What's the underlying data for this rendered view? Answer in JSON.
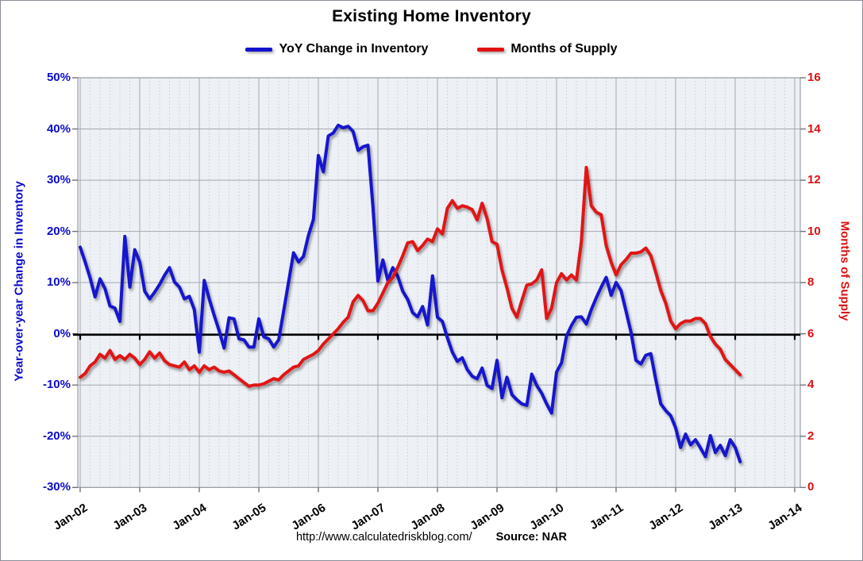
{
  "chart_data": {
    "type": "line",
    "title": "Existing Home Inventory",
    "footer": {
      "url": "http://www.calculatedriskblog.com/",
      "source": "Source: NAR"
    },
    "colors": {
      "yoy_line": "#1412cd",
      "supply_line": "#e01212",
      "zero_axis": "#000000",
      "grid_major": "#a5a9b0",
      "grid_minor": "#c7ccd6",
      "plot_bg": "#edf1f6",
      "left_axis_text": "#0b0bcc",
      "right_axis_text": "#dd0f0f"
    },
    "legend": [
      {
        "name": "YoY Change in Inventory",
        "color": "#1412cd"
      },
      {
        "name": "Months of Supply",
        "color": "#e01212"
      }
    ],
    "x_tick_labels": [
      "Jan-02",
      "Jan-03",
      "Jan-04",
      "Jan-05",
      "Jan-06",
      "Jan-07",
      "Jan-08",
      "Jan-09",
      "Jan-10",
      "Jan-11",
      "Jan-12",
      "Jan-13",
      "Jan-14"
    ],
    "left_axis": {
      "title": "Year-over-year Change in Inventory",
      "min": -30,
      "max": 50,
      "ticks": [
        "50%",
        "40%",
        "30%",
        "20%",
        "10%",
        "0%",
        "-10%",
        "-20%",
        "-30%"
      ]
    },
    "right_axis": {
      "title": "Months of Supply",
      "min": 0,
      "max": 16,
      "ticks": [
        "16",
        "14",
        "12",
        "10",
        "8",
        "6",
        "4",
        "2",
        "0"
      ]
    },
    "start_month": "Jan-02",
    "end_month": "Feb-13",
    "series": [
      {
        "name": "YoY Change in Inventory",
        "axis": "left",
        "unit": "%",
        "values": [
          17.1,
          14.2,
          11.1,
          7.4,
          10.9,
          9.0,
          5.6,
          5.2,
          2.6,
          19.2,
          9.3,
          16.6,
          14.2,
          8.5,
          7.0,
          8.3,
          9.8,
          11.6,
          13.1,
          10.3,
          9.3,
          7.0,
          7.5,
          4.9,
          -3.4,
          10.6,
          7.0,
          3.8,
          0.8,
          -2.6,
          3.3,
          3.1,
          -0.8,
          -1.0,
          -2.4,
          -2.4,
          3.1,
          -0.4,
          -0.8,
          -2.4,
          -1.0,
          4.6,
          10.3,
          16.0,
          14.2,
          15.3,
          19.4,
          22.5,
          35.0,
          31.8,
          38.8,
          39.4,
          40.9,
          40.4,
          40.7,
          39.7,
          36.0,
          36.7,
          37.0,
          25.0,
          10.5,
          14.6,
          10.6,
          13.1,
          11.4,
          8.5,
          6.9,
          4.3,
          3.5,
          5.5,
          1.9,
          11.5,
          3.4,
          2.6,
          -0.6,
          -3.4,
          -5.2,
          -4.5,
          -6.8,
          -8.1,
          -8.6,
          -6.5,
          -9.9,
          -10.5,
          -5.0,
          -12.3,
          -8.3,
          -11.7,
          -12.7,
          -13.5,
          -13.8,
          -7.7,
          -9.9,
          -11.4,
          -13.5,
          -15.3,
          -7.3,
          -5.5,
          -0.3,
          1.8,
          3.4,
          3.5,
          2.1,
          4.9,
          7.2,
          9.3,
          11.2,
          7.7,
          10.2,
          8.6,
          4.6,
          0.5,
          -5.0,
          -5.7,
          -4.0,
          -3.7,
          -8.8,
          -13.5,
          -14.8,
          -15.8,
          -18.2,
          -22.0,
          -19.4,
          -21.5,
          -20.5,
          -22.1,
          -23.8,
          -19.7,
          -23.0,
          -21.6,
          -23.6,
          -20.5,
          -22.0,
          -24.8
        ]
      },
      {
        "name": "Months of Supply",
        "axis": "right",
        "unit": "months",
        "values": [
          4.3,
          4.45,
          4.75,
          4.9,
          5.2,
          5.05,
          5.35,
          5.0,
          5.15,
          5.0,
          5.2,
          5.05,
          4.8,
          5.0,
          5.3,
          5.05,
          5.25,
          4.95,
          4.8,
          4.75,
          4.7,
          4.9,
          4.6,
          4.75,
          4.5,
          4.75,
          4.6,
          4.7,
          4.55,
          4.5,
          4.55,
          4.4,
          4.25,
          4.1,
          3.95,
          4.0,
          4.0,
          4.05,
          4.15,
          4.25,
          4.2,
          4.4,
          4.55,
          4.7,
          4.75,
          5.0,
          5.1,
          5.2,
          5.35,
          5.6,
          5.8,
          6.0,
          6.2,
          6.45,
          6.65,
          7.25,
          7.5,
          7.3,
          6.9,
          6.9,
          7.2,
          7.6,
          8.0,
          8.2,
          8.6,
          9.05,
          9.55,
          9.6,
          9.25,
          9.45,
          9.7,
          9.6,
          10.1,
          9.9,
          10.9,
          11.2,
          10.9,
          11.0,
          10.95,
          10.85,
          10.45,
          11.1,
          10.5,
          9.6,
          9.5,
          8.5,
          7.8,
          7.0,
          6.65,
          7.3,
          7.9,
          7.95,
          8.1,
          8.5,
          6.6,
          7.0,
          8.0,
          8.35,
          8.1,
          8.3,
          8.1,
          9.6,
          12.5,
          11.0,
          10.75,
          10.65,
          9.45,
          8.8,
          8.3,
          8.7,
          8.9,
          9.15,
          9.15,
          9.2,
          9.35,
          9.05,
          8.4,
          7.7,
          7.2,
          6.5,
          6.2,
          6.4,
          6.5,
          6.5,
          6.6,
          6.6,
          6.4,
          5.9,
          5.6,
          5.4,
          5.0,
          4.8,
          4.6,
          4.4
        ]
      }
    ]
  }
}
